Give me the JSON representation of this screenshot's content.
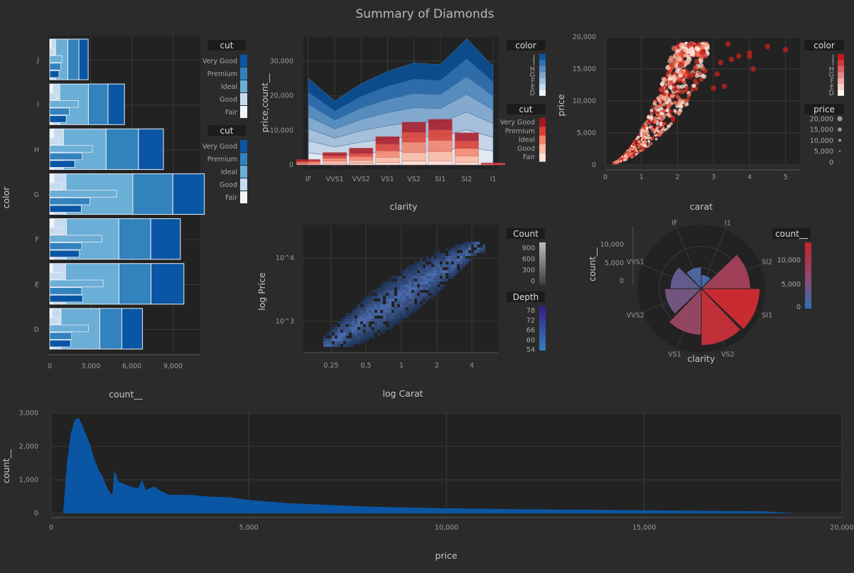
{
  "title": "Summary of Diamonds",
  "colors": {
    "bg": "#2b2b2b",
    "panel": "#222222",
    "grid": "#3a3a3a",
    "blues": [
      "#f2f6fb",
      "#c6dbef",
      "#6baed6",
      "#3182bd",
      "#0b56a4"
    ],
    "reds": [
      "#fee0d2",
      "#fcbba1",
      "#f4826a",
      "#de3b2f",
      "#a91623"
    ],
    "hist": "#0b56a4"
  },
  "chart_data": [
    {
      "id": "bar",
      "type": "bar",
      "orientation": "horizontal",
      "categories": [
        "J",
        "I",
        "H",
        "G",
        "F",
        "E",
        "D"
      ],
      "series": [
        {
          "name": "Fair",
          "values": [
            119,
            210,
            303,
            314,
            312,
            224,
            163
          ]
        },
        {
          "name": "Good",
          "values": [
            307,
            522,
            702,
            871,
            909,
            933,
            662
          ]
        },
        {
          "name": "Ideal",
          "values": [
            896,
            2093,
            3115,
            4884,
            3826,
            3903,
            2834
          ]
        },
        {
          "name": "Premium",
          "values": [
            808,
            1428,
            2360,
            2924,
            2331,
            2337,
            1603
          ]
        },
        {
          "name": "Very Good",
          "values": [
            678,
            1204,
            1824,
            2299,
            2164,
            2400,
            1513
          ]
        }
      ],
      "xticks": [
        "0",
        "3,000",
        "6,000",
        "9,000"
      ],
      "xlim": [
        0,
        11000
      ],
      "xlabel": "count__",
      "ylabel": "color",
      "legends": [
        {
          "title": "cut",
          "labels": [
            "Very Good",
            "Premium",
            "Ideal",
            "Good",
            "Fair"
          ]
        },
        {
          "title": "cut",
          "labels": [
            "Very Good",
            "Premium",
            "Ideal",
            "Good",
            "Fair"
          ]
        }
      ]
    },
    {
      "id": "area",
      "type": "area",
      "categories": [
        "IF",
        "VVS1",
        "VVS2",
        "VS1",
        "VS2",
        "SI1",
        "SI2",
        "I1"
      ],
      "area_top": [
        25000,
        18500,
        23500,
        27000,
        29500,
        29000,
        36500,
        28500
      ],
      "area_layers": [
        0.14,
        0.28,
        0.42,
        0.56,
        0.7,
        0.84
      ],
      "bar_stack": [
        [
          200,
          400,
          500,
          700,
          1100,
          1200,
          800,
          50
        ],
        [
          300,
          700,
          900,
          1500,
          2500,
          2700,
          1800,
          100
        ],
        [
          400,
          800,
          1000,
          1900,
          3000,
          3200,
          2200,
          150
        ],
        [
          300,
          700,
          900,
          1900,
          2800,
          3000,
          2100,
          120
        ],
        [
          400,
          1000,
          1600,
          2200,
          3000,
          3100,
          2400,
          200
        ]
      ],
      "yticks": [
        "0",
        "10,000",
        "20,000",
        "30,000"
      ],
      "ylim": [
        0,
        37000
      ],
      "xlabel": "clarity",
      "ylabel": "price,count__",
      "legends": [
        {
          "title": "color",
          "labels": [
            "J",
            "I",
            "H",
            "G",
            "F",
            "E",
            "D"
          ]
        },
        {
          "title": "cut",
          "labels": [
            "Very Good",
            "Premium",
            "Ideal",
            "Good",
            "Fair"
          ]
        }
      ]
    },
    {
      "id": "scatter",
      "type": "scatter",
      "xlim": [
        0,
        5.4
      ],
      "ylim": [
        0,
        20000
      ],
      "xticks": [
        "0",
        "1",
        "2",
        "3",
        "4",
        "5"
      ],
      "yticks": [
        "0",
        "5,000",
        "10,000",
        "15,000",
        "20,000"
      ],
      "xlabel": "carat",
      "ylabel": "price",
      "outliers": [
        [
          3.0,
          12000
        ],
        [
          3.2,
          16000
        ],
        [
          3.5,
          16500
        ],
        [
          4.0,
          17500
        ],
        [
          4.5,
          18500
        ],
        [
          5.0,
          18000
        ],
        [
          3.4,
          18900
        ],
        [
          4.1,
          15000
        ],
        [
          3.1,
          14200
        ],
        [
          3.7,
          17000
        ],
        [
          3.3,
          12300
        ],
        [
          4.0,
          17000
        ]
      ],
      "legends": [
        {
          "title": "color",
          "labels": [
            "J",
            "I",
            "H",
            "G",
            "F",
            "E",
            "D"
          ]
        },
        {
          "title": "price",
          "labels": [
            "20,000",
            "15,000",
            "10,000",
            "5,000",
            "0"
          ]
        }
      ]
    },
    {
      "id": "heatmap",
      "type": "heatmap",
      "xticks": [
        "0.25",
        "0.5",
        "1",
        "2",
        "4"
      ],
      "yticks": [
        "10^4",
        "10^3"
      ],
      "xlabel": "log Carat",
      "ylabel": "log Price",
      "legends": [
        {
          "title": "Count",
          "labels": [
            "900",
            "600",
            "300",
            "0"
          ]
        },
        {
          "title": "Depth",
          "labels": [
            "78",
            "72",
            "66",
            "60",
            "54"
          ]
        }
      ]
    },
    {
      "id": "polar",
      "type": "bar",
      "coord": "polar",
      "categories": [
        "VVS2",
        "VVS1",
        "IF",
        "I1",
        "SI2",
        "SI1",
        "VS2",
        "VS1"
      ],
      "values": [
        5066,
        3655,
        1790,
        741,
        9194,
        13065,
        12258,
        8171
      ],
      "rlim": [
        0,
        14000
      ],
      "rticks": [
        "10,000",
        "5,000",
        "0"
      ],
      "xlabel": "clarity",
      "ylabel": "count__",
      "legends": [
        {
          "title": "count__",
          "labels": [
            "10,000",
            "5,000",
            "0"
          ]
        }
      ]
    },
    {
      "id": "hist",
      "type": "area",
      "x": [
        300,
        400,
        500,
        600,
        700,
        800,
        900,
        1000,
        1100,
        1200,
        1300,
        1400,
        1500,
        1550,
        1600,
        1700,
        1800,
        2000,
        2200,
        2300,
        2400,
        2600,
        2800,
        3000,
        3500,
        4000,
        4500,
        5000,
        6000,
        7000,
        8000,
        10000,
        12000,
        14000,
        16000,
        18000,
        18800
      ],
      "y": [
        0,
        1500,
        2400,
        2800,
        2850,
        2600,
        2300,
        2000,
        1600,
        1300,
        1100,
        800,
        600,
        550,
        1300,
        950,
        900,
        800,
        750,
        1000,
        700,
        800,
        650,
        550,
        550,
        500,
        480,
        400,
        300,
        250,
        200,
        150,
        120,
        100,
        80,
        60,
        0
      ],
      "xlim": [
        0,
        20000
      ],
      "ylim": [
        0,
        3000
      ],
      "xticks": [
        "0",
        "5,000",
        "10,000",
        "15,000",
        "20,000"
      ],
      "yticks": [
        "0",
        "1,000",
        "2,000",
        "3,000"
      ],
      "xlabel": "price",
      "ylabel": "count__"
    }
  ]
}
